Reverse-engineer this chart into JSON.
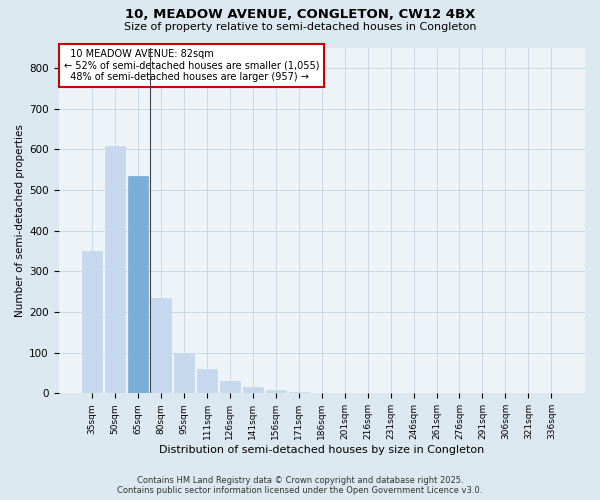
{
  "title": "10, MEADOW AVENUE, CONGLETON, CW12 4BX",
  "subtitle": "Size of property relative to semi-detached houses in Congleton",
  "xlabel": "Distribution of semi-detached houses by size in Congleton",
  "ylabel": "Number of semi-detached properties",
  "categories": [
    "35sqm",
    "50sqm",
    "65sqm",
    "80sqm",
    "95sqm",
    "111sqm",
    "126sqm",
    "141sqm",
    "156sqm",
    "171sqm",
    "186sqm",
    "201sqm",
    "216sqm",
    "231sqm",
    "246sqm",
    "261sqm",
    "276sqm",
    "291sqm",
    "306sqm",
    "321sqm",
    "336sqm"
  ],
  "values": [
    350,
    608,
    535,
    235,
    100,
    60,
    30,
    15,
    8,
    3,
    2,
    1,
    1,
    0,
    0,
    0,
    1,
    0,
    0,
    0,
    0
  ],
  "bar_color_default": "#c5d8ed",
  "bar_color_highlight": "#7aaed6",
  "highlight_index": 2,
  "property_sqm": 82,
  "property_label": "10 MEADOW AVENUE: 82sqm",
  "pct_smaller": 52,
  "pct_larger": 48,
  "count_smaller": 1055,
  "count_larger": 957,
  "vline_x": 2.5,
  "annotation_box_color": "#cc0000",
  "bg_color": "#dce8f0",
  "plot_bg_color": "#eef3f8",
  "footer_line1": "Contains HM Land Registry data © Crown copyright and database right 2025.",
  "footer_line2": "Contains public sector information licensed under the Open Government Licence v3.0.",
  "ylim": [
    0,
    850
  ],
  "yticks": [
    0,
    100,
    200,
    300,
    400,
    500,
    600,
    700,
    800
  ]
}
